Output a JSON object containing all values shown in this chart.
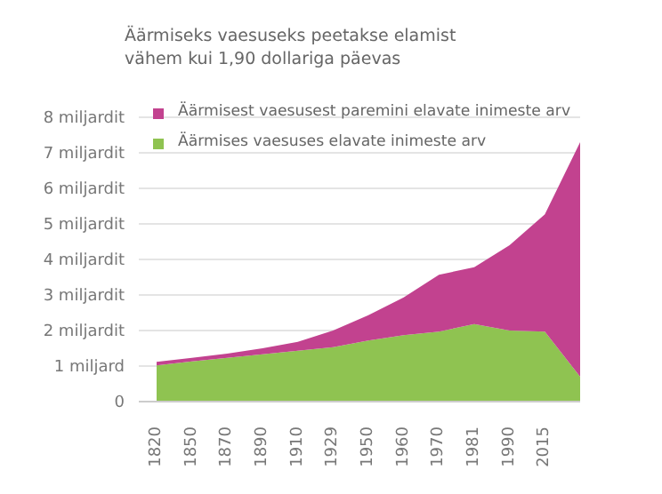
{
  "chart_data": {
    "type": "area",
    "title": "Äärmiseks vaesuseks peetakse elamist\nvähem kui 1,90 dollariga päevas",
    "stacked": true,
    "categories": [
      "1820",
      "1850",
      "1870",
      "1890",
      "1910",
      "1929",
      "1950",
      "1960",
      "1970",
      "1981",
      "1990",
      "2015",
      null
    ],
    "series": [
      {
        "name": "Äärmises vaesuses elavate inimeste arv",
        "color": "#8fc351",
        "values": [
          1.02,
          1.13,
          1.23,
          1.33,
          1.43,
          1.53,
          1.72,
          1.87,
          1.97,
          2.18,
          2.0,
          1.97,
          0.7
        ]
      },
      {
        "name": "Äärmisest vaesusest paremini elavate inimeste arv",
        "color": "#c2428f",
        "values": [
          0.1,
          0.1,
          0.12,
          0.17,
          0.25,
          0.47,
          0.71,
          1.06,
          1.6,
          1.6,
          2.4,
          3.3,
          6.6
        ]
      }
    ],
    "ylim": [
      0,
      8
    ],
    "yticks": [
      0,
      {
        "value": 1,
        "label": "1 miljard"
      },
      {
        "value": 2,
        "label": "2 miljardit"
      },
      {
        "value": 3,
        "label": "3 miljardit"
      },
      {
        "value": 4,
        "label": "4 miljardit"
      },
      {
        "value": 5,
        "label": "5 miljardit"
      },
      {
        "value": 6,
        "label": "6 miljardit"
      },
      {
        "value": 7,
        "label": "7 miljardit"
      },
      {
        "value": 8,
        "label": "8 miljardit"
      }
    ],
    "grid": "y",
    "legend": "top left"
  }
}
